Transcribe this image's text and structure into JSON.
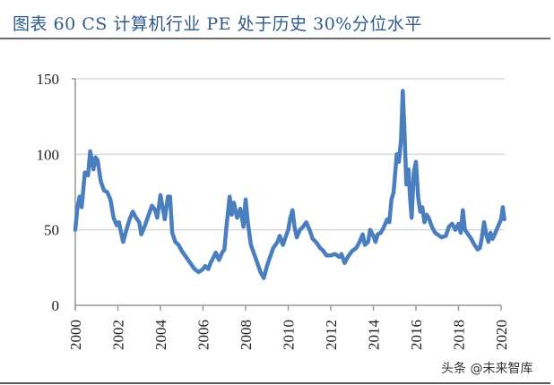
{
  "header": {
    "title": "图表 60 CS 计算机行业 PE 处于历史 30%分位水平"
  },
  "watermark": "头条 @未来智库",
  "colors": {
    "title": "#2f5a8a",
    "line": "#4a7ebf",
    "gridline": "#d9d9d9",
    "axis": "#999999"
  },
  "chart_data": {
    "type": "line",
    "title": "CS 计算机行业 PE 处于历史 30%分位水平",
    "xlabel": "",
    "ylabel": "",
    "xlim": [
      2000,
      2020
    ],
    "ylim": [
      0,
      150
    ],
    "x_ticks": [
      "2000",
      "2002",
      "2004",
      "2006",
      "2008",
      "2010",
      "2012",
      "2014",
      "2016",
      "2018",
      "2020"
    ],
    "y_ticks": [
      "0",
      "50",
      "100",
      "150"
    ],
    "grid": "horizontal",
    "legend": null,
    "series": [
      {
        "name": "CS计算机行业PE",
        "x": [
          2000.0,
          2000.1,
          2000.2,
          2000.3,
          2000.45,
          2000.6,
          2000.7,
          2000.85,
          2000.95,
          2001.05,
          2001.2,
          2001.35,
          2001.5,
          2001.65,
          2001.8,
          2001.95,
          2002.05,
          2002.15,
          2002.25,
          2002.4,
          2002.55,
          2002.7,
          2002.85,
          2003.0,
          2003.1,
          2003.25,
          2003.45,
          2003.6,
          2003.75,
          2003.85,
          2004.0,
          2004.1,
          2004.2,
          2004.35,
          2004.45,
          2004.55,
          2004.7,
          2004.85,
          2005.0,
          2005.2,
          2005.4,
          2005.6,
          2005.8,
          2006.0,
          2006.1,
          2006.25,
          2006.35,
          2006.5,
          2006.6,
          2006.75,
          2006.9,
          2007.0,
          2007.1,
          2007.25,
          2007.35,
          2007.45,
          2007.6,
          2007.75,
          2007.9,
          2008.0,
          2008.1,
          2008.25,
          2008.4,
          2008.55,
          2008.7,
          2008.85,
          2009.0,
          2009.15,
          2009.3,
          2009.5,
          2009.6,
          2009.75,
          2009.85,
          2010.0,
          2010.1,
          2010.2,
          2010.3,
          2010.4,
          2010.55,
          2010.7,
          2010.85,
          2011.0,
          2011.15,
          2011.3,
          2011.5,
          2011.65,
          2011.8,
          2012.0,
          2012.2,
          2012.4,
          2012.5,
          2012.65,
          2012.8,
          2013.0,
          2013.2,
          2013.35,
          2013.5,
          2013.6,
          2013.75,
          2013.85,
          2014.0,
          2014.1,
          2014.2,
          2014.35,
          2014.5,
          2014.65,
          2014.75,
          2014.85,
          2014.95,
          2015.1,
          2015.2,
          2015.3,
          2015.38,
          2015.45,
          2015.55,
          2015.65,
          2015.72,
          2015.8,
          2015.9,
          2016.0,
          2016.1,
          2016.2,
          2016.3,
          2016.4,
          2016.5,
          2016.6,
          2016.75,
          2016.9,
          2017.0,
          2017.2,
          2017.4,
          2017.55,
          2017.7,
          2017.85,
          2018.0,
          2018.1,
          2018.2,
          2018.3,
          2018.45,
          2018.6,
          2018.75,
          2018.9,
          2019.0,
          2019.1,
          2019.2,
          2019.3,
          2019.4,
          2019.5,
          2019.6,
          2019.7,
          2019.85,
          2020.0,
          2020.08,
          2020.15
        ],
        "values": [
          50,
          65,
          72,
          65,
          88,
          86,
          102,
          90,
          98,
          96,
          82,
          76,
          75,
          70,
          58,
          53,
          55,
          48,
          42,
          50,
          57,
          62,
          58,
          55,
          47,
          52,
          60,
          66,
          63,
          58,
          73,
          65,
          57,
          72,
          72,
          48,
          42,
          40,
          36,
          32,
          28,
          24,
          22,
          24,
          26,
          24,
          28,
          32,
          35,
          30,
          35,
          37,
          52,
          72,
          60,
          68,
          58,
          64,
          52,
          70,
          55,
          40,
          34,
          28,
          22,
          18,
          26,
          32,
          38,
          42,
          46,
          40,
          44,
          50,
          58,
          63,
          52,
          45,
          50,
          52,
          55,
          50,
          44,
          42,
          38,
          36,
          33,
          33,
          34,
          32,
          34,
          28,
          32,
          36,
          38,
          42,
          47,
          40,
          42,
          50,
          46,
          42,
          47,
          48,
          52,
          57,
          55,
          70,
          75,
          100,
          95,
          110,
          142,
          120,
          80,
          90,
          72,
          58,
          88,
          95,
          72,
          62,
          65,
          55,
          60,
          58,
          52,
          48,
          47,
          45,
          46,
          52,
          54,
          50,
          54,
          48,
          63,
          50,
          47,
          44,
          40,
          37,
          38,
          45,
          55,
          47,
          42,
          48,
          44,
          47,
          52,
          57,
          65,
          57
        ]
      }
    ]
  }
}
